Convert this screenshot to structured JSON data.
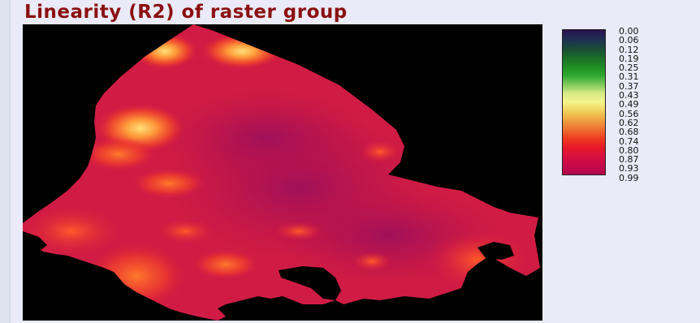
{
  "title": "Linearity (R2) of raster group",
  "legend": {
    "labels": [
      "0.00",
      "0.06",
      "0.12",
      "0.19",
      "0.25",
      "0.31",
      "0.37",
      "0.43",
      "0.49",
      "0.56",
      "0.62",
      "0.68",
      "0.74",
      "0.80",
      "0.87",
      "0.93",
      "0.99"
    ],
    "colors": [
      "#2a1050",
      "#1f2f55",
      "#1a4a3a",
      "#1a6a28",
      "#1f8c22",
      "#2ea830",
      "#79c85a",
      "#d9e988",
      "#f3f58a",
      "#f0d05a",
      "#f0a040",
      "#ee7030",
      "#ee3a20",
      "#e81a28",
      "#d81040",
      "#c80a4a",
      "#b0084c"
    ]
  },
  "map": {
    "background_color": "#000000",
    "fill_color": "#cc1a4a"
  }
}
